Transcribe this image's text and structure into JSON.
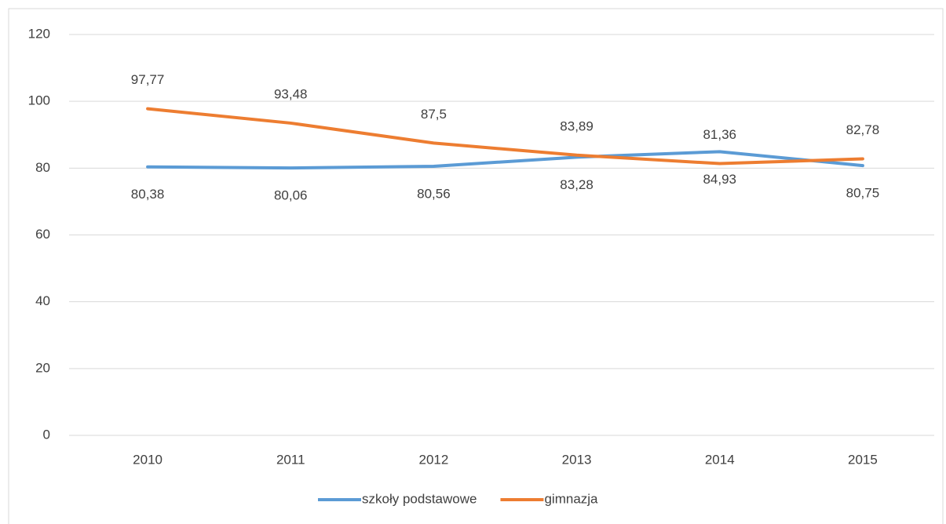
{
  "chart_data": {
    "type": "line",
    "categories": [
      "2010",
      "2011",
      "2012",
      "2013",
      "2014",
      "2015"
    ],
    "series": [
      {
        "name": "szkoły podstawowe",
        "color": "#5b9bd5",
        "values": [
          80.38,
          80.06,
          80.56,
          83.28,
          84.93,
          80.75
        ],
        "value_labels": [
          "80,38",
          "80,06",
          "80,56",
          "83,28",
          "84,93",
          "80,75"
        ]
      },
      {
        "name": "gimnazja",
        "color": "#ed7d31",
        "values": [
          97.77,
          93.48,
          87.5,
          83.89,
          81.36,
          82.78
        ],
        "value_labels": [
          "97,77",
          "93,48",
          "87,5",
          "83,89",
          "81,36",
          "82,78"
        ]
      }
    ],
    "ylim": [
      0,
      120
    ],
    "yticks": [
      0,
      20,
      40,
      60,
      80,
      100,
      120
    ],
    "grid": true,
    "legend": "bottom"
  }
}
